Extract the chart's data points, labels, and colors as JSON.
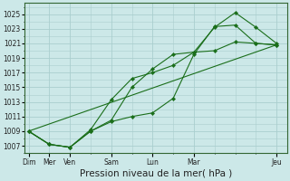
{
  "background_color": "#cce8e8",
  "grid_color": "#aacece",
  "line_color": "#1a6e1a",
  "marker_color": "#1a6e1a",
  "xlabel": "Pression niveau de la mer( hPa )",
  "xlabel_fontsize": 7.5,
  "yticks": [
    1007,
    1009,
    1011,
    1013,
    1015,
    1017,
    1019,
    1021,
    1023,
    1025
  ],
  "ylim": [
    1006.0,
    1026.5
  ],
  "xlim": [
    -0.2,
    12.5
  ],
  "xtick_positions": [
    0,
    1,
    2,
    4,
    6,
    8,
    12
  ],
  "xtick_labels": [
    "Dim",
    "Mer",
    "Ven",
    "Sam",
    "Lun",
    "Mar",
    "Jeu"
  ],
  "series": [
    {
      "x": [
        0,
        1,
        2,
        3,
        4,
        5,
        6,
        7,
        8,
        9,
        10,
        11,
        12
      ],
      "y": [
        1009.0,
        1007.2,
        1006.8,
        1009.2,
        1013.3,
        1016.2,
        1017.0,
        1018.0,
        1019.8,
        1020.0,
        1021.2,
        1021.0,
        1020.8
      ],
      "no_markers": false
    },
    {
      "x": [
        0,
        1,
        2,
        3,
        4,
        5,
        6,
        7,
        8,
        9,
        10,
        11,
        12
      ],
      "y": [
        1009.0,
        1007.2,
        1006.8,
        1009.0,
        1010.3,
        1011.0,
        1011.5,
        1013.5,
        1019.5,
        1023.3,
        1023.5,
        1021.0,
        1020.8
      ],
      "no_markers": false
    },
    {
      "x": [
        0,
        1,
        2,
        3,
        4,
        5,
        6,
        7,
        8,
        9,
        10,
        11,
        12
      ],
      "y": [
        1009.0,
        1007.2,
        1006.8,
        1009.0,
        1010.5,
        1015.0,
        1017.5,
        1019.5,
        1019.8,
        1023.2,
        1025.2,
        1023.2,
        1021.0
      ],
      "no_markers": false
    },
    {
      "x": [
        0,
        12
      ],
      "y": [
        1009.0,
        1020.8
      ],
      "no_markers": true
    }
  ]
}
